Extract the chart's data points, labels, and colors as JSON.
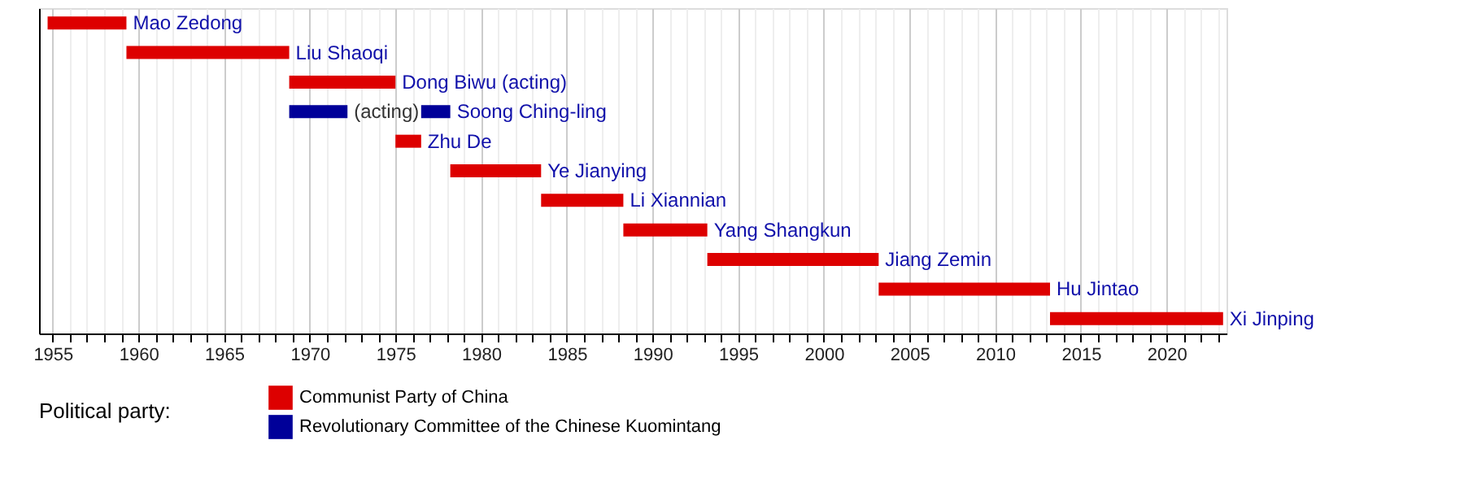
{
  "chart_data": {
    "type": "bar",
    "orientation": "horizontal",
    "legend_title": "Political party:",
    "legend": "bottom left",
    "grid": "x",
    "tick_labels": "x",
    "categories": [
      "Mao Zedong",
      "Liu Shaoqi",
      "Dong Biwu (acting)",
      "Soong Ching-ling",
      "Zhu De",
      "Ye Jianying",
      "Li Xiannian",
      "Yang Shangkun",
      "Jiang Zemin",
      "Hu Jintao",
      "Xi Jinping"
    ],
    "series": [
      {
        "name": "Communist Party of China",
        "color": "#dd0000",
        "base": [
          1954.7,
          1959.3,
          1968.8,
          null,
          1975.0,
          1978.2,
          1983.5,
          1988.3,
          1993.2,
          2003.2,
          2013.2
        ],
        "values": [
          4.6,
          9.5,
          6.2,
          null,
          1.5,
          5.3,
          4.8,
          4.9,
          10.0,
          10.0,
          10.1
        ]
      },
      {
        "name": "Revolutionary Committee of the Chinese Kuomintang",
        "color": "#000099",
        "base": [
          null,
          null,
          null,
          1968.8,
          null,
          null,
          null,
          null,
          null,
          null,
          null
        ],
        "values": [
          null,
          null,
          null,
          3.4,
          null,
          null,
          null,
          null,
          null,
          null,
          null
        ]
      },
      {
        "color": "#000099",
        "base": [
          null,
          null,
          null,
          1976.5,
          null,
          null,
          null,
          null,
          null,
          null,
          null
        ],
        "values": [
          null,
          null,
          null,
          1.7,
          null,
          null,
          null,
          null,
          null,
          null,
          null
        ]
      }
    ],
    "annotations": [
      {
        "text": "(acting)",
        "x": 1972.2,
        "y": "Soong Ching-ling"
      }
    ],
    "xlim": [
      1954.2,
      2023.5
    ],
    "xticks": [
      1955,
      {
        "value": 1956,
        "label": null
      },
      {
        "value": 1957,
        "label": null
      },
      {
        "value": 1958,
        "label": null
      },
      {
        "value": 1959,
        "label": null
      },
      1960,
      {
        "value": 1961,
        "label": null
      },
      {
        "value": 1962,
        "label": null
      },
      {
        "value": 1963,
        "label": null
      },
      {
        "value": 1964,
        "label": null
      },
      1965,
      {
        "value": 1966,
        "label": null
      },
      {
        "value": 1967,
        "label": null
      },
      {
        "value": 1968,
        "label": null
      },
      {
        "value": 1969,
        "label": null
      },
      1970,
      {
        "value": 1971,
        "label": null
      },
      {
        "value": 1972,
        "label": null
      },
      {
        "value": 1973,
        "label": null
      },
      {
        "value": 1974,
        "label": null
      },
      1975,
      {
        "value": 1976,
        "label": null
      },
      {
        "value": 1977,
        "label": null
      },
      {
        "value": 1978,
        "label": null
      },
      {
        "value": 1979,
        "label": null
      },
      1980,
      {
        "value": 1981,
        "label": null
      },
      {
        "value": 1982,
        "label": null
      },
      {
        "value": 1983,
        "label": null
      },
      {
        "value": 1984,
        "label": null
      },
      1985,
      {
        "value": 1986,
        "label": null
      },
      {
        "value": 1987,
        "label": null
      },
      {
        "value": 1988,
        "label": null
      },
      {
        "value": 1989,
        "label": null
      },
      1990,
      {
        "value": 1991,
        "label": null
      },
      {
        "value": 1992,
        "label": null
      },
      {
        "value": 1993,
        "label": null
      },
      {
        "value": 1994,
        "label": null
      },
      1995,
      {
        "value": 1996,
        "label": null
      },
      {
        "value": 1997,
        "label": null
      },
      {
        "value": 1998,
        "label": null
      },
      {
        "value": 1999,
        "label": null
      },
      2000,
      {
        "value": 2001,
        "label": null
      },
      {
        "value": 2002,
        "label": null
      },
      {
        "value": 2003,
        "label": null
      },
      {
        "value": 2004,
        "label": null
      },
      2005,
      {
        "value": 2006,
        "label": null
      },
      {
        "value": 2007,
        "label": null
      },
      {
        "value": 2008,
        "label": null
      },
      {
        "value": 2009,
        "label": null
      },
      2010,
      {
        "value": 2011,
        "label": null
      },
      {
        "value": 2012,
        "label": null
      },
      {
        "value": 2013,
        "label": null
      },
      {
        "value": 2014,
        "label": null
      },
      2015,
      {
        "value": 2016,
        "label": null
      },
      {
        "value": 2017,
        "label": null
      },
      {
        "value": 2018,
        "label": null
      },
      {
        "value": 2019,
        "label": null
      },
      2020,
      {
        "value": 2021,
        "label": null
      },
      {
        "value": 2022,
        "label": null
      },
      {
        "value": 2023,
        "label": null
      }
    ]
  }
}
